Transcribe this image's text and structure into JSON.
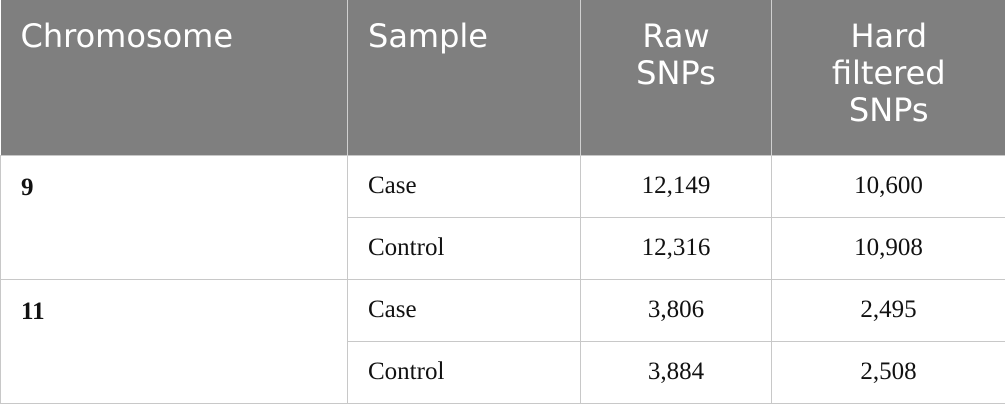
{
  "table": {
    "header": [
      "Chromosome",
      "Sample",
      "Raw SNPs",
      "Hard filtered SNPs"
    ],
    "groups": [
      {
        "chromosome": "9",
        "samples": [
          {
            "sample": "Case",
            "raw": "12,149",
            "filtered": "10,600"
          },
          {
            "sample": "Control",
            "raw": "12,316",
            "filtered": "10,908"
          }
        ]
      },
      {
        "chromosome": "11",
        "samples": [
          {
            "sample": "Case",
            "raw": "3,806",
            "filtered": "2,495"
          },
          {
            "sample": "Control",
            "raw": "3,884",
            "filtered": "2,508"
          }
        ]
      }
    ]
  }
}
